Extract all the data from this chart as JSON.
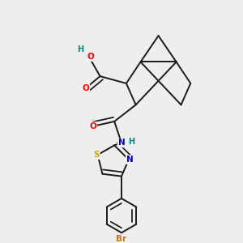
{
  "bg_color": "#eeeeee",
  "bond_color": "#1a1a1a",
  "bond_width": 1.4,
  "atom_colors": {
    "O": "#ff0000",
    "N": "#0000cc",
    "S": "#ccaa00",
    "Br": "#cc7700",
    "H": "#008888",
    "C": "#1a1a1a"
  },
  "figsize": [
    3.0,
    3.0
  ],
  "dpi": 100
}
